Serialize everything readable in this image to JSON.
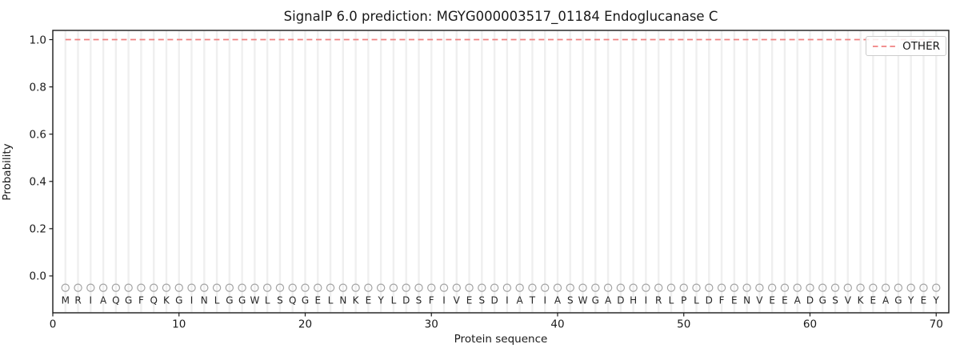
{
  "chart_data": {
    "type": "line",
    "title": "SignalP 6.0 prediction: MGYG000003517_01184 Endoglucanase C",
    "xlabel": "Protein sequence",
    "ylabel": "Probability",
    "xlim": [
      0,
      71
    ],
    "ylim": [
      -0.156,
      1.039
    ],
    "xticks": [
      {
        "v": 0,
        "label": "0"
      },
      {
        "v": 10,
        "label": "10"
      },
      {
        "v": 20,
        "label": "20"
      },
      {
        "v": 30,
        "label": "30"
      },
      {
        "v": 40,
        "label": "40"
      },
      {
        "v": 50,
        "label": "50"
      },
      {
        "v": 60,
        "label": "60"
      },
      {
        "v": 70,
        "label": "70"
      }
    ],
    "yticks": [
      {
        "v": 0.0,
        "label": "0.0"
      },
      {
        "v": 0.2,
        "label": "0.2"
      },
      {
        "v": 0.4,
        "label": "0.4"
      },
      {
        "v": 0.6,
        "label": "0.6"
      },
      {
        "v": 0.8,
        "label": "0.8"
      },
      {
        "v": 1.0,
        "label": "1.0"
      }
    ],
    "grid": {
      "vertical_per_residue": true,
      "horizontal": false
    },
    "series": [
      {
        "name": "OTHER",
        "color": "#f08080",
        "linestyle": "dashed",
        "x": [
          1,
          70
        ],
        "y": [
          1.0,
          1.0
        ]
      }
    ],
    "sequence": "MRIAQGFQKGINLGGWLSQGELNKEYLDSFIVESDIATIASWGADHIRLPLDFENVEEADGSVKEAGYEY",
    "sequence_length": 70,
    "marker_row": {
      "y": -0.05,
      "symbol": "open-circle",
      "color": "#a3a3a3"
    },
    "legend": {
      "position": "upper right",
      "entries": [
        {
          "label": "OTHER",
          "linestyle": "dashed",
          "color": "#f08080"
        }
      ]
    },
    "colors": {
      "grid": "#efefef",
      "axis": "#1a1a1a",
      "letters": "#262626",
      "background": "#ffffff",
      "legend_border": "#cccccc"
    }
  }
}
